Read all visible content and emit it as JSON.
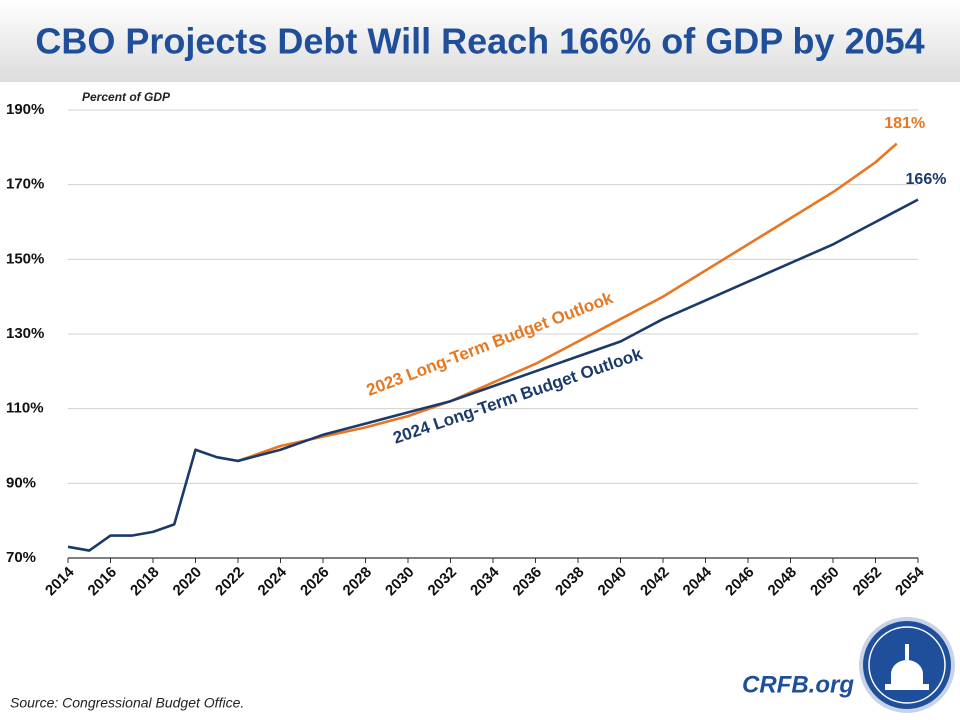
{
  "chart_data": {
    "type": "line",
    "title": "CBO Projects Debt Will Reach 166% of GDP by 2054",
    "y_label": "Percent of GDP",
    "source": "Source: Congressional Budget Office.",
    "brand": "CRFB.org",
    "xlim": [
      2014,
      2054
    ],
    "xticks": [
      2014,
      2016,
      2018,
      2020,
      2022,
      2024,
      2026,
      2028,
      2030,
      2032,
      2034,
      2036,
      2038,
      2040,
      2042,
      2044,
      2046,
      2048,
      2050,
      2052,
      2054
    ],
    "ylim": [
      70,
      190
    ],
    "yticks": [
      {
        "value": 70,
        "label": "70%"
      },
      {
        "value": 90,
        "label": "90%"
      },
      {
        "value": 110,
        "label": "110%"
      },
      {
        "value": 130,
        "label": "130%"
      },
      {
        "value": 150,
        "label": "150%"
      },
      {
        "value": 170,
        "label": "170%"
      },
      {
        "value": 190,
        "label": "190%"
      }
    ],
    "grid": true,
    "series": [
      {
        "name": "2023 Long-Term Budget Outlook",
        "color": "#e87722",
        "x": [
          2022,
          2024,
          2026,
          2028,
          2030,
          2032,
          2034,
          2036,
          2038,
          2040,
          2042,
          2044,
          2046,
          2048,
          2050,
          2052,
          2053
        ],
        "values": [
          96,
          100,
          102.5,
          105,
          108,
          112,
          117,
          122,
          128,
          134,
          140,
          147,
          154,
          161,
          168,
          176,
          181
        ],
        "end_label": "181%"
      },
      {
        "name": "2024 Long-Term Budget Outlook",
        "color": "#1b3a6b",
        "x": [
          2014,
          2015,
          2016,
          2017,
          2018,
          2019,
          2020,
          2021,
          2022,
          2024,
          2026,
          2028,
          2030,
          2032,
          2034,
          2036,
          2038,
          2040,
          2042,
          2044,
          2046,
          2048,
          2050,
          2052,
          2054
        ],
        "values": [
          73,
          72,
          76,
          76,
          77,
          79,
          99,
          97,
          96,
          99,
          103,
          106,
          109,
          112,
          116,
          120,
          124,
          128,
          134,
          139,
          144,
          149,
          154,
          160,
          166
        ],
        "end_label": "166%"
      }
    ]
  }
}
